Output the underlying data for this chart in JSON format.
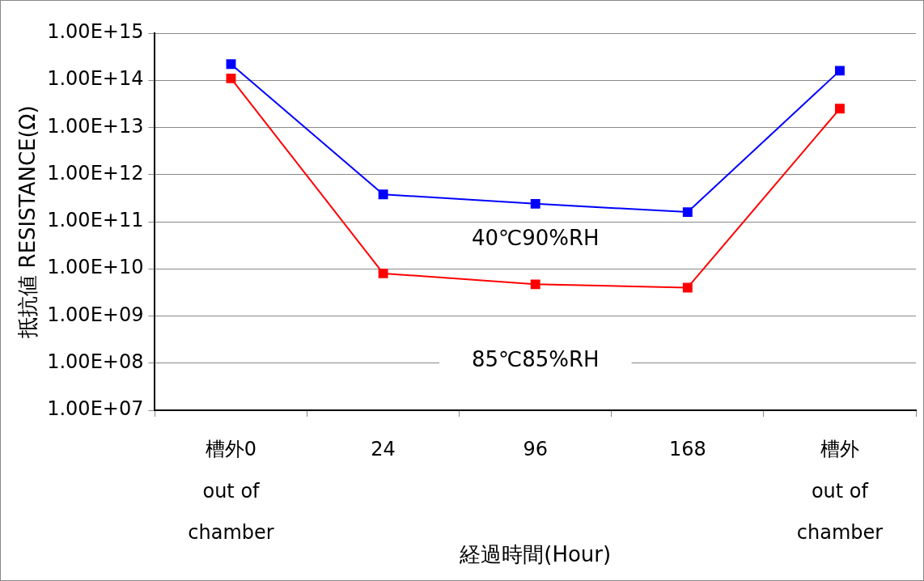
{
  "chart_data": {
    "type": "line",
    "xlabel": "経過時間(Hour)",
    "ylabel": "抵抗値 RESISTANCE(Ω)",
    "categories": [
      "槽外0\nout of\nchamber",
      "24",
      "96",
      "168",
      "槽外\nout of\nchamber"
    ],
    "series": [
      {
        "name": "40℃90%RH",
        "color": "#0000ff",
        "values": [
          220000000000000.0,
          380000000000.0,
          240000000000.0,
          160000000000.0,
          160000000000000.0
        ]
      },
      {
        "name": "85℃85%RH",
        "color": "#ff0000",
        "values": [
          110000000000000.0,
          8000000000.0,
          4700000000.0,
          4000000000.0,
          25000000000000.0
        ]
      }
    ],
    "log": "y",
    "ylim": [
      10000000.0,
      1000000000000000.0
    ],
    "yticks": [
      {
        "value": 10000000.0,
        "label": "1.00E+07"
      },
      {
        "value": 100000000.0,
        "label": "1.00E+08"
      },
      {
        "value": 1000000000.0,
        "label": "1.00E+09"
      },
      {
        "value": 10000000000.0,
        "label": "1.00E+10"
      },
      {
        "value": 100000000000.0,
        "label": "1.00E+11"
      },
      {
        "value": 1000000000000.0,
        "label": "1.00E+12"
      },
      {
        "value": 10000000000000.0,
        "label": "1.00E+13"
      },
      {
        "value": 100000000000000.0,
        "label": "1.00E+14"
      },
      {
        "value": 1000000000000000.0,
        "label": "1.00E+15"
      }
    ],
    "grid": "y",
    "legend": false,
    "marker": "square",
    "line_style": "solid"
  }
}
